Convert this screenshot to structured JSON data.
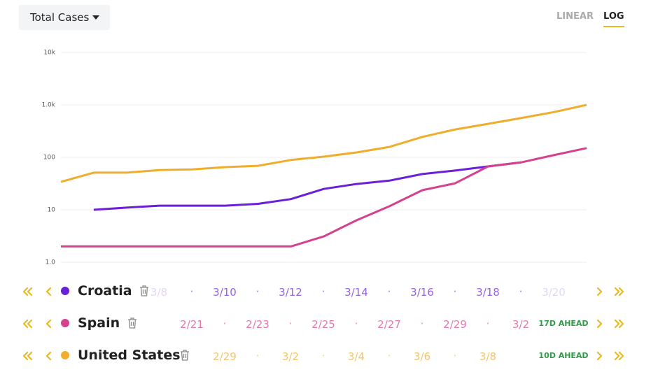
{
  "controls": {
    "metric": "Total Cases",
    "scales": [
      "LINEAR",
      "LOG"
    ],
    "active_scale": 1
  },
  "chart_data": {
    "type": "line",
    "log_scale": true,
    "grid": true,
    "categories": [
      null,
      null,
      null,
      null,
      null,
      null,
      null,
      null,
      null,
      null,
      null,
      null,
      null,
      null,
      null,
      null,
      null
    ],
    "ylim": [
      1,
      10000
    ],
    "yticks": [
      {
        "value": 1,
        "label": "1.0"
      },
      10,
      100,
      {
        "value": 1000,
        "label": "1.0k"
      },
      {
        "value": 10000,
        "label": "10k"
      }
    ],
    "series": [
      {
        "name": "Croatia",
        "color": "#6a1fd8",
        "values": [
          null,
          10,
          11,
          12,
          12,
          12,
          13,
          16,
          25,
          31,
          36,
          48,
          56,
          67,
          80,
          null,
          null
        ]
      },
      {
        "name": "Spain",
        "color": "#d6418f",
        "values": [
          2,
          2,
          2,
          2,
          2,
          2,
          2,
          2,
          3.1,
          6.3,
          11.7,
          23.6,
          32,
          67,
          80,
          110,
          150
        ]
      },
      {
        "name": "United States",
        "color": "#f0ad2c",
        "values": [
          34,
          51,
          51,
          57,
          59,
          65,
          69,
          89,
          103,
          124,
          158,
          245,
          340,
          435,
          560,
          730,
          1000
        ]
      }
    ]
  },
  "timelines": [
    {
      "dates": [
        "3/8",
        "3/10",
        "3/12",
        "3/14",
        "3/16",
        "3/18",
        "3/20"
      ]
    },
    {
      "dates": [
        "2/21",
        "2/23",
        "2/25",
        "2/27",
        "2/29",
        "3/2"
      ],
      "ahead": "17D AHEAD"
    },
    {
      "dates": [
        "2/29",
        "3/2",
        "3/4",
        "3/6",
        "3/8"
      ],
      "ahead": "10D AHEAD"
    }
  ]
}
